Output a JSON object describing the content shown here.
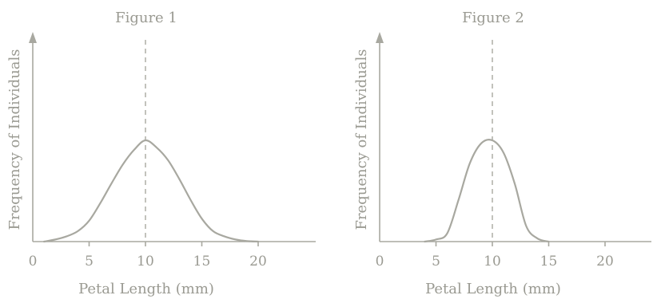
{
  "chart_data": [
    {
      "type": "line",
      "title": "Figure 1",
      "xlabel": "Petal Length (mm)",
      "ylabel": "Frequency of Individuals",
      "xticks": [
        0,
        5,
        10,
        15,
        20
      ],
      "xlim": [
        0,
        25
      ],
      "ylim": [
        0,
        1.0
      ],
      "mean_marker_x": 10,
      "series": [
        {
          "x": [
            1,
            2,
            3,
            4,
            5,
            6,
            7,
            8,
            9,
            10,
            11,
            12,
            13,
            14,
            15,
            16,
            17,
            18,
            19,
            20
          ],
          "values": [
            0.0,
            0.02,
            0.05,
            0.1,
            0.2,
            0.37,
            0.56,
            0.74,
            0.88,
            0.97,
            0.9,
            0.78,
            0.6,
            0.4,
            0.22,
            0.1,
            0.05,
            0.02,
            0.005,
            0.0
          ]
        }
      ]
    },
    {
      "type": "line",
      "title": "Figure 2",
      "xlabel": "Petal Length (mm)",
      "ylabel": "Frequency of Individuals",
      "xticks": [
        0,
        5,
        10,
        15,
        20
      ],
      "xlim": [
        0,
        25
      ],
      "ylim": [
        0,
        1.0
      ],
      "mean_marker_x": 10,
      "series": [
        {
          "x": [
            4,
            5,
            6,
            7,
            8,
            9,
            10,
            11,
            12,
            13,
            14,
            15
          ],
          "values": [
            0.0,
            0.02,
            0.08,
            0.4,
            0.75,
            0.94,
            0.97,
            0.85,
            0.55,
            0.15,
            0.03,
            0.0
          ]
        }
      ]
    }
  ]
}
